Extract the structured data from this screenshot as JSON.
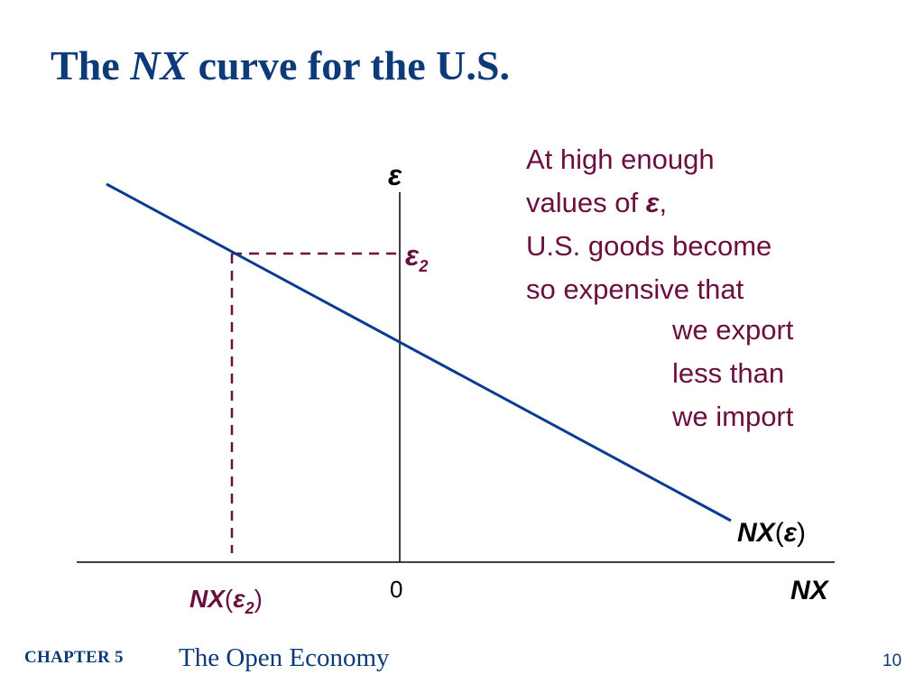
{
  "slide": {
    "title_prefix": "The ",
    "title_emph": "NX",
    "title_suffix": " curve for the U.S.",
    "page_number": "10"
  },
  "footer": {
    "chapter": "CHAPTER 5",
    "subject": "The Open Economy"
  },
  "diagram": {
    "y_axis_label": "ε",
    "x_axis_label": "NX",
    "origin_label": "0",
    "epsilon2_symbol": "ε",
    "epsilon2_sub": "2",
    "curve_label_base": "NX",
    "curve_label_arg": "ε",
    "nx_eps2_base": "NX",
    "nx_eps2_arg": "ε",
    "nx_eps2_sub": "2",
    "open_paren": "(",
    "close_paren": ")"
  },
  "annotation": {
    "line1": "At high enough",
    "line2_text": "values of ",
    "line2_symbol": "ε",
    "line2_end": ",",
    "line3": "U.S. goods become",
    "line4": "so expensive that",
    "line5": "we export",
    "line6": "less than",
    "line7": "we import"
  },
  "colors": {
    "curve": "#0a3b93",
    "accent": "#6b0f3e",
    "title": "#0d3a78",
    "axis": "#000000"
  }
}
